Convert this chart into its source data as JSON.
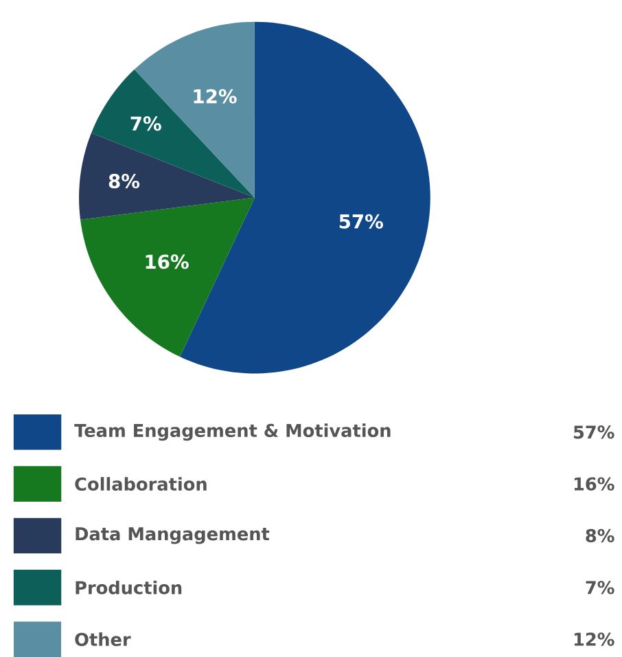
{
  "chart_data": {
    "type": "pie",
    "categories": [
      "Team Engagement & Motivation",
      "Collaboration",
      "Data Mangagement",
      "Production",
      "Other"
    ],
    "values": [
      57,
      16,
      8,
      7,
      12
    ],
    "colors": [
      "#0f4789",
      "#17791f",
      "#283b5d",
      "#0d5f59",
      "#5a8ea3"
    ],
    "value_labels": [
      "57%",
      "16%",
      "8%",
      "7%",
      "12%"
    ],
    "legend": "bottom"
  }
}
